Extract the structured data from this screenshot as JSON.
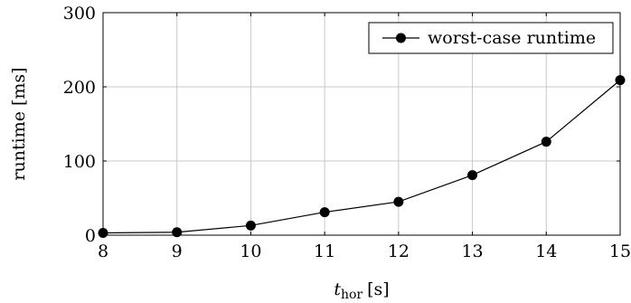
{
  "chart_data": {
    "type": "line",
    "x": [
      8,
      9,
      10,
      11,
      12,
      13,
      14,
      15
    ],
    "series": [
      {
        "name": "worst-case runtime",
        "values": [
          3,
          4,
          13,
          31,
          45,
          81,
          126,
          209
        ],
        "color": "#000000",
        "marker": "circle"
      }
    ],
    "xlabel": {
      "main": "t",
      "sub": "hor",
      "unit": "[s]"
    },
    "ylabel": "runtime [ms]",
    "xlim": [
      8,
      15
    ],
    "ylim": [
      0,
      300
    ],
    "xticks": [
      8,
      9,
      10,
      11,
      12,
      13,
      14,
      15
    ],
    "yticks": [
      0,
      100,
      200,
      300
    ],
    "grid": true,
    "legend_position": "top-right"
  }
}
